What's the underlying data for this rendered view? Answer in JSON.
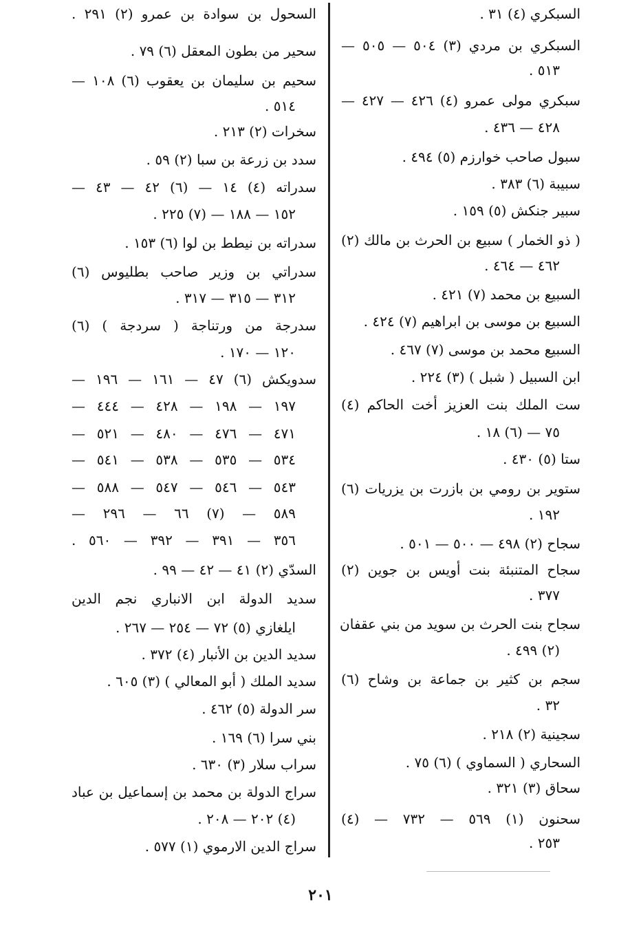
{
  "right_column": [
    "السبكري (٤) ٣١ .",
    "السبكري بن مردي (٣) ٥٠٤ — ٥٠٥ —",
    "٥١٣ .",
    "سبكري مولى عمرو (٤) ٤٢٦ — ٤٢٧ —",
    "٤٢٨ — ٤٣٦ .",
    "سبول صاحب خوارزم (٥) ٤٩٤ .",
    "سبيبة (٦) ٣٨٣ .",
    "سبير جنكش (٥) ١٥٩ .",
    "( ذو الخمار ) سبيع بن الحرث بن مالك (٢)",
    "٤٦٢ — ٤٦٤ .",
    "السبيع بن محمد (٧) ٤٢١ .",
    "السبيع بن موسى بن ابراهيم (٧) ٤٢٤ .",
    "السبيع محمد بن موسى (٧) ٤٦٧ .",
    "ابن السبيل ( شبل ) (٣) ٢٢٤ .",
    "ست الملك بنت العزيز أخت الحاكم (٤)",
    "٧٥ — (٦) ١٨ .",
    "ستا (٥) ٤٣٠ .",
    "ستوير بن رومي بن بازرت بن يزريات (٦)",
    "١٩٢ .",
    "سجاح (٢) ٤٩٨ — ٥٠٠ — ٥٠١ .",
    "سجاح المتنبئة بنت أويس بن جوين (٢)",
    "٣٧٧ .",
    "سجاح بنت الحرث بن سويد من بني عقفان",
    "(٢) ٤٩٩ .",
    "سجم بن كثير بن جماعة بن وشاح (٦)",
    "٣٢ .",
    "سجينية (٢) ٢١٨ .",
    "السحاري ( السماوي ) (٦) ٧٥ .",
    "سحاق (٣) ٣٢١ .",
    "سحنون (١) ٥٦٩ — ٧٣٢ — (٤)",
    "٢٥٣ ."
  ],
  "left_column": [
    "السحول بن سوادة بن عمرو (٢) ٢٩١ .",
    "سحير من بطون المعقل (٦) ٧٩ .",
    "سحيم بن سليمان بن يعقوب (٦) ١٠٨ —",
    "٥١٤ .",
    "سخرات (٢) ٢١٣ .",
    "سدد بن زرعة بن سبا (٢) ٥٩ .",
    "سدراته (٤) ١٤ — (٦) ٤٢ — ٤٣ —",
    "١٥٢ — ١٨٨ — (٧) ٢٢٥ .",
    "سدراته بن نيطط بن لوا (٦) ١٥٣ .",
    "سدراتي بن وزير صاحب بطليوس (٦)",
    "٣١٢ — ٣١٥ — ٣١٧ .",
    "سدرجة من ورتناجة ( سردجة ) (٦)",
    "١٢٠ — ١٧٠ .",
    "سدويكش (٦) ٤٧ — ١٦١ — ١٩٦ —",
    "١٩٧ — ١٩٨ — ٤٢٨ — ٤٤٤ —",
    "٤٧١ — ٤٧٦ — ٤٨٠ — ٥٢١ —",
    "٥٣٤ — ٥٣٥ — ٥٣٨ — ٥٤١ —",
    "٥٤٣ — ٥٤٦ — ٥٤٧ — ٥٨٨ —",
    "٥٨٩ — (٧) ٦٦ — ٢٩٦ —",
    "٣٥٦ — ٣٩١ — ٣٩٢ — ٥٦٠ .",
    "السدّي (٢) ٤١ — ٤٢ — ٩٩ .",
    "سديد الدولة ابن الانباري نجم الدين",
    "ايلغازي (٥) ٧٢ — ٢٥٤ — ٢٦٧ .",
    "سديد الدين بن الأنبار (٤) ٣٧٢ .",
    "سديد الملك ( أبو المعالي ) (٣) ٦٠٥ .",
    "سر الدولة (٥) ٤٦٢ .",
    "بني سرا (٦) ١٦٩ .",
    "سراب سلار (٣) ٦٣٠ .",
    "سراج الدولة بن محمد بن إسماعيل بن عباد",
    "(٤) ٢٠٢ — ٢٠٨ .",
    "سراج الدين الارموي (١) ٥٧٧ ."
  ],
  "page_number": "٢٠١"
}
